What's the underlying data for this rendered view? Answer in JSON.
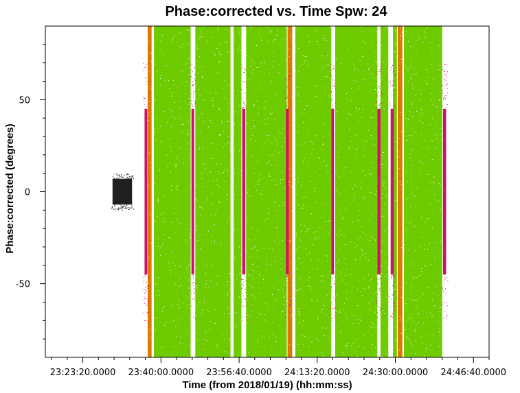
{
  "chart_data": {
    "type": "scatter",
    "title": "Phase:corrected vs. Time Spw: 24",
    "xlabel": "Time (from 2018/01/19) (hh:mm:ss)",
    "ylabel": "Phase:corrected (degrees)",
    "x_unit": "seconds from 2018/01/19 00:00:00",
    "xlim": [
      83720,
      89400
    ],
    "ylim": [
      -90,
      90
    ],
    "x_ticks": [
      {
        "value": 84200,
        "label": "23:23:20.0000"
      },
      {
        "value": 85200,
        "label": "23:40:00.0000"
      },
      {
        "value": 86200,
        "label": "23:56:40.0000"
      },
      {
        "value": 87200,
        "label": "24:13:20.0000"
      },
      {
        "value": 88200,
        "label": "24:30:00.0000"
      },
      {
        "value": 89200,
        "label": "24:46:40.0000"
      }
    ],
    "y_ticks": [
      {
        "value": -50,
        "label": "-50"
      },
      {
        "value": 0,
        "label": "0"
      },
      {
        "value": 50,
        "label": "50"
      }
    ],
    "grid": false,
    "colors": {
      "black": "#202020",
      "orange": "#e07800",
      "green": "#6ecb00",
      "magenta": "#d0106a"
    },
    "series": [
      {
        "color": "black",
        "scans": [
          [
            84580,
            84830
          ]
        ],
        "spread": [
          -7,
          7
        ]
      },
      {
        "color": "orange",
        "scans": [
          [
            85030,
            85080
          ],
          [
            86820,
            86880
          ],
          [
            88230,
            88290
          ]
        ],
        "spread": [
          -90,
          90
        ]
      },
      {
        "color": "green",
        "scans": [
          [
            85110,
            85580
          ],
          [
            85640,
            86090
          ],
          [
            86130,
            86230
          ],
          [
            86290,
            86810
          ],
          [
            86920,
            87380
          ],
          [
            87430,
            87970
          ],
          [
            88010,
            88110
          ],
          [
            88170,
            88220
          ],
          [
            88310,
            88800
          ]
        ],
        "spread": [
          -90,
          90
        ]
      },
      {
        "color": "magenta",
        "scans": [
          [
            84990,
            85025
          ],
          [
            85590,
            85625
          ],
          [
            86240,
            86280
          ],
          [
            86800,
            86835
          ],
          [
            87380,
            87415
          ],
          [
            87970,
            88010
          ],
          [
            88140,
            88180
          ],
          [
            88810,
            88850
          ]
        ],
        "spread": [
          -45,
          45
        ]
      }
    ]
  }
}
